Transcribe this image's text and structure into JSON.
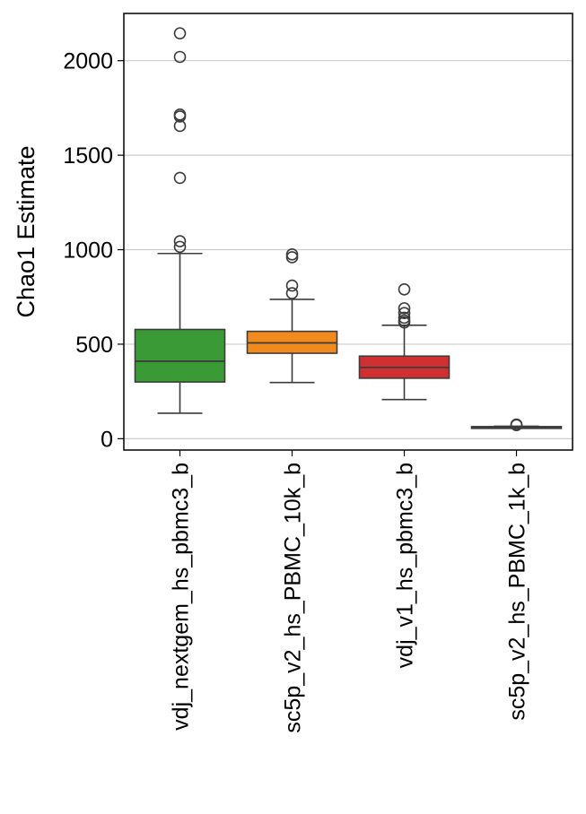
{
  "chart_data": {
    "type": "box",
    "ylabel": "Chao1 Estimate",
    "xlabel": "",
    "ylim": [
      -60,
      2250
    ],
    "yticks": [
      0,
      500,
      1000,
      1500,
      2000
    ],
    "ygrid": true,
    "categories": [
      "vdj_nextgem_hs_pbmc3_b",
      "sc5p_v2_hs_PBMC_10k_b",
      "vdj_v1_hs_pbmc3_b",
      "sc5p_v2_hs_PBMC_1k_b"
    ],
    "colors": [
      "#3a9a35",
      "#f08a1c",
      "#d03030",
      "#8a5bb2"
    ],
    "boxes": [
      {
        "whisker_low": 135,
        "q1": 300,
        "median": 410,
        "q3": 578,
        "whisker_high": 980,
        "outliers": [
          1015,
          1045,
          1380,
          1655,
          1705,
          1715,
          2020,
          2145
        ]
      },
      {
        "whisker_low": 297,
        "q1": 452,
        "median": 507,
        "q3": 568,
        "whisker_high": 737,
        "outliers": [
          770,
          810,
          960,
          975
        ]
      },
      {
        "whisker_low": 207,
        "q1": 320,
        "median": 377,
        "q3": 437,
        "whisker_high": 600,
        "outliers": [
          615,
          625,
          640,
          665,
          690,
          790
        ]
      },
      {
        "whisker_low": 55,
        "q1": 55,
        "median": 60,
        "q3": 64,
        "whisker_high": 66,
        "outliers": [
          72,
          75
        ]
      }
    ]
  }
}
